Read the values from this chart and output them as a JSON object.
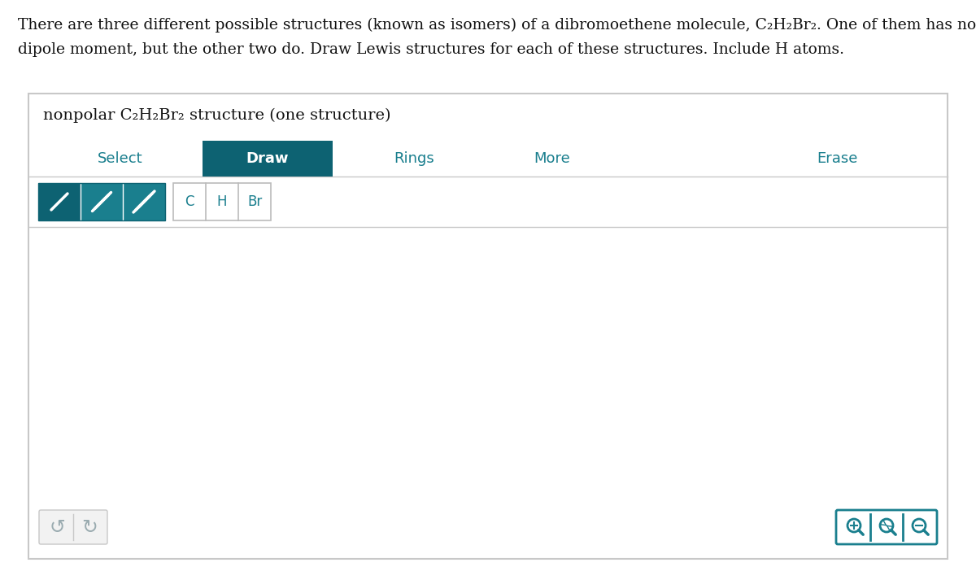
{
  "bg_color": "#e8e8e8",
  "page_bg": "#ffffff",
  "teal": "#1a7f8e",
  "teal_dark": "#0d6272",
  "gray_border": "#c8c8c8",
  "gray_border2": "#bbbbbb",
  "light_gray_btn": "#f2f2f2",
  "text_color": "#111111",
  "header_line1": "There are three different possible structures (known as isomers) of a dibromoethene molecule, C₂H₂Br₂. One of them has no net",
  "header_line2": "dipole moment, but the other two do. Draw Lewis structures for each of these structures. Include H atoms.",
  "box_title": "nonpolar C₂H₂Br₂ structure (one structure)",
  "tab_select": "Select",
  "tab_draw": "Draw",
  "tab_rings": "Rings",
  "tab_more": "More",
  "tab_erase": "Erase",
  "atom_labels": [
    "C",
    "H",
    "Br"
  ]
}
